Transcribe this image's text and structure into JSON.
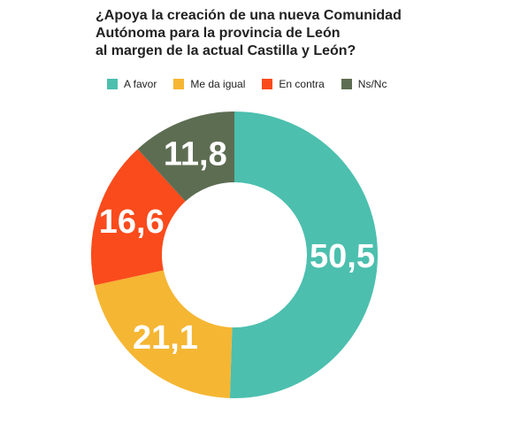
{
  "chart_data": {
    "type": "pie",
    "title_lines": [
      "¿Apoya la creación de una nueva Comunidad",
      "Autónoma para la provincia de León",
      "al margen de la actual Castilla y León?"
    ],
    "categories": [
      "A favor",
      "Me da igual",
      "En contra",
      "Ns/Nc"
    ],
    "values": [
      50.5,
      21.1,
      16.6,
      11.8
    ],
    "value_labels": [
      "50,5",
      "21,1",
      "16,6",
      "11,8"
    ],
    "colors": [
      "#4cbfae",
      "#f5b633",
      "#fa4b1c",
      "#5d6d52"
    ],
    "legend_position": "top"
  }
}
